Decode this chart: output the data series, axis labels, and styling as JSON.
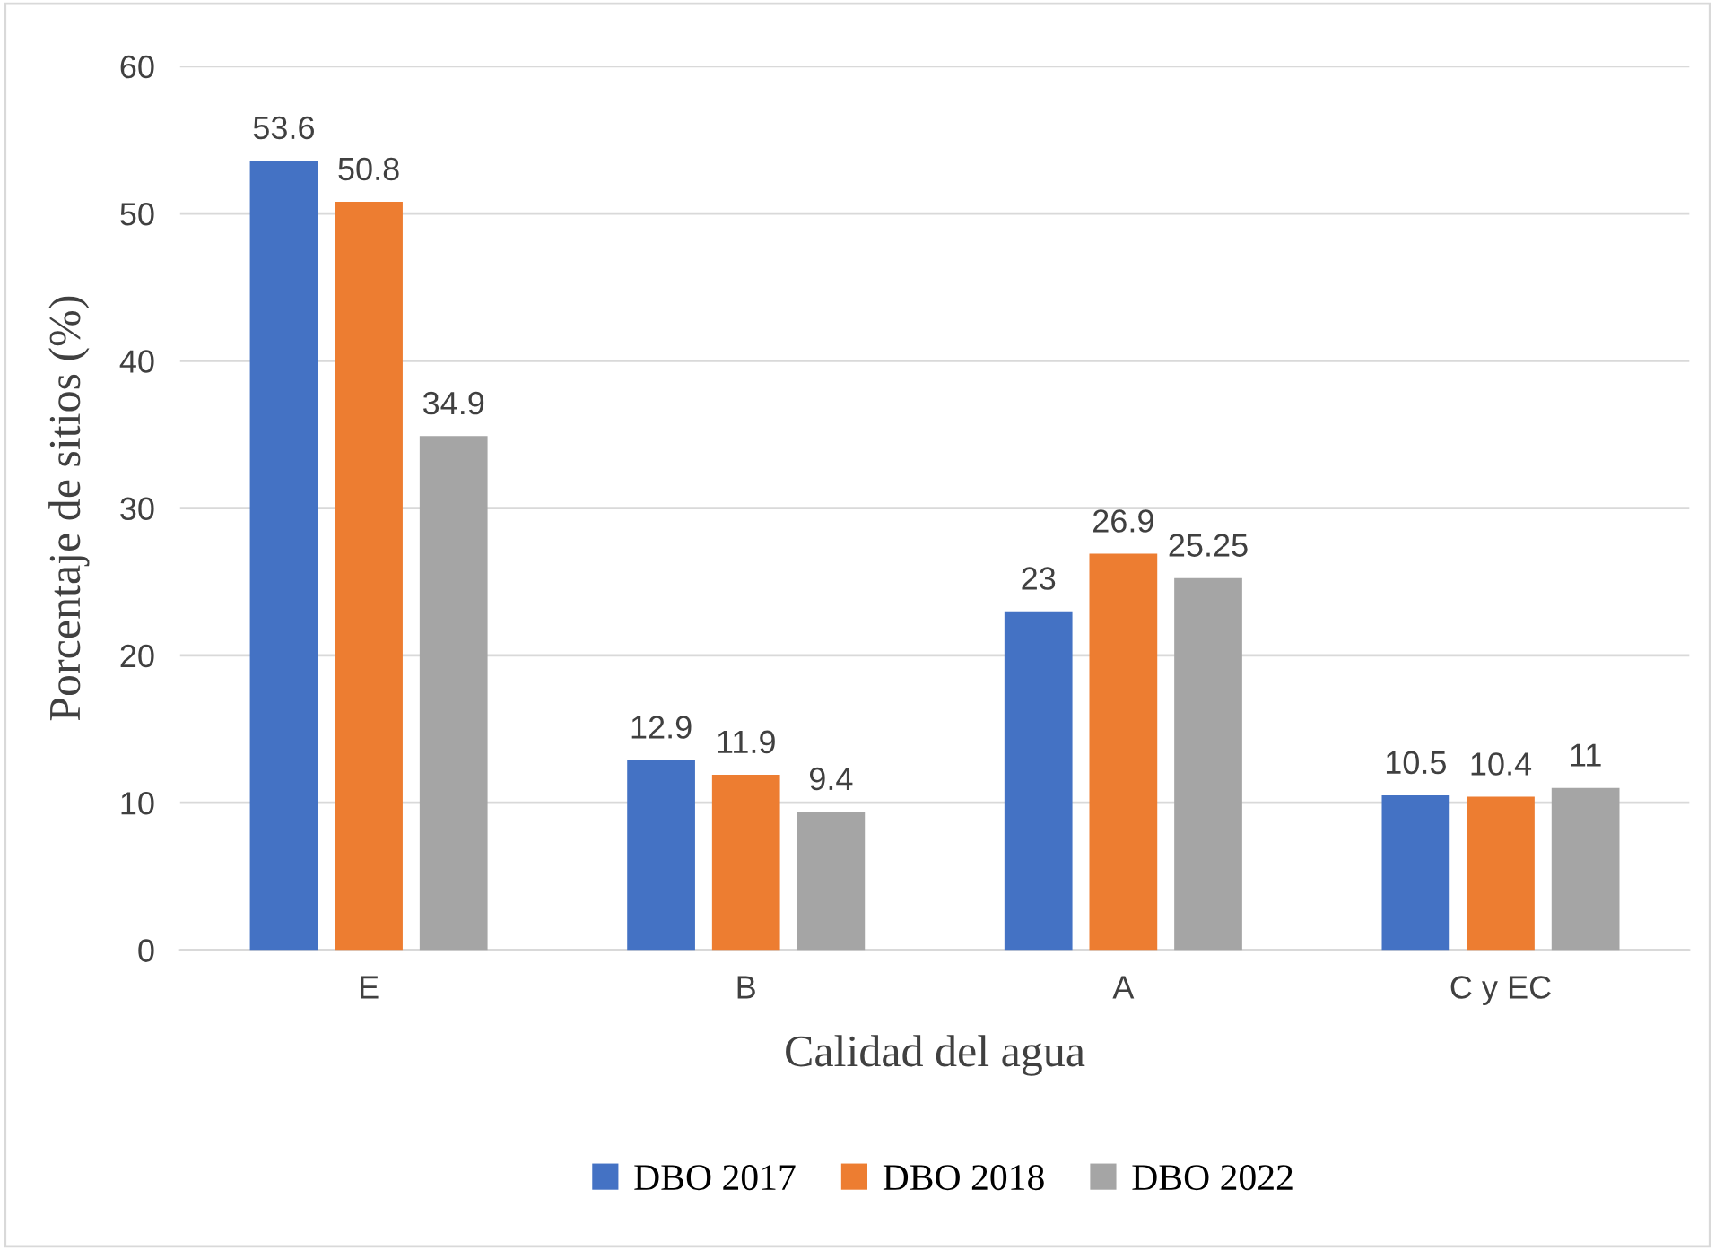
{
  "chart_data": {
    "type": "bar",
    "xlabel": "Calidad del agua",
    "ylabel": "Porcentaje de sitios (%)",
    "categories": [
      "E",
      "B",
      "A",
      "C y EC"
    ],
    "series": [
      {
        "name": "DBO 2017",
        "color": "#4472c4",
        "values": [
          53.6,
          12.9,
          23,
          10.5
        ]
      },
      {
        "name": "DBO 2018",
        "color": "#ed7d31",
        "values": [
          50.8,
          11.9,
          26.9,
          10.4
        ]
      },
      {
        "name": "DBO 2022",
        "color": "#a5a5a5",
        "values": [
          34.9,
          9.4,
          25.25,
          11
        ]
      }
    ],
    "ylim": [
      0,
      60
    ],
    "yticks": [
      0,
      10,
      20,
      30,
      40,
      50,
      60
    ],
    "grid": "y",
    "legend": "bottom",
    "data_labels": true
  }
}
